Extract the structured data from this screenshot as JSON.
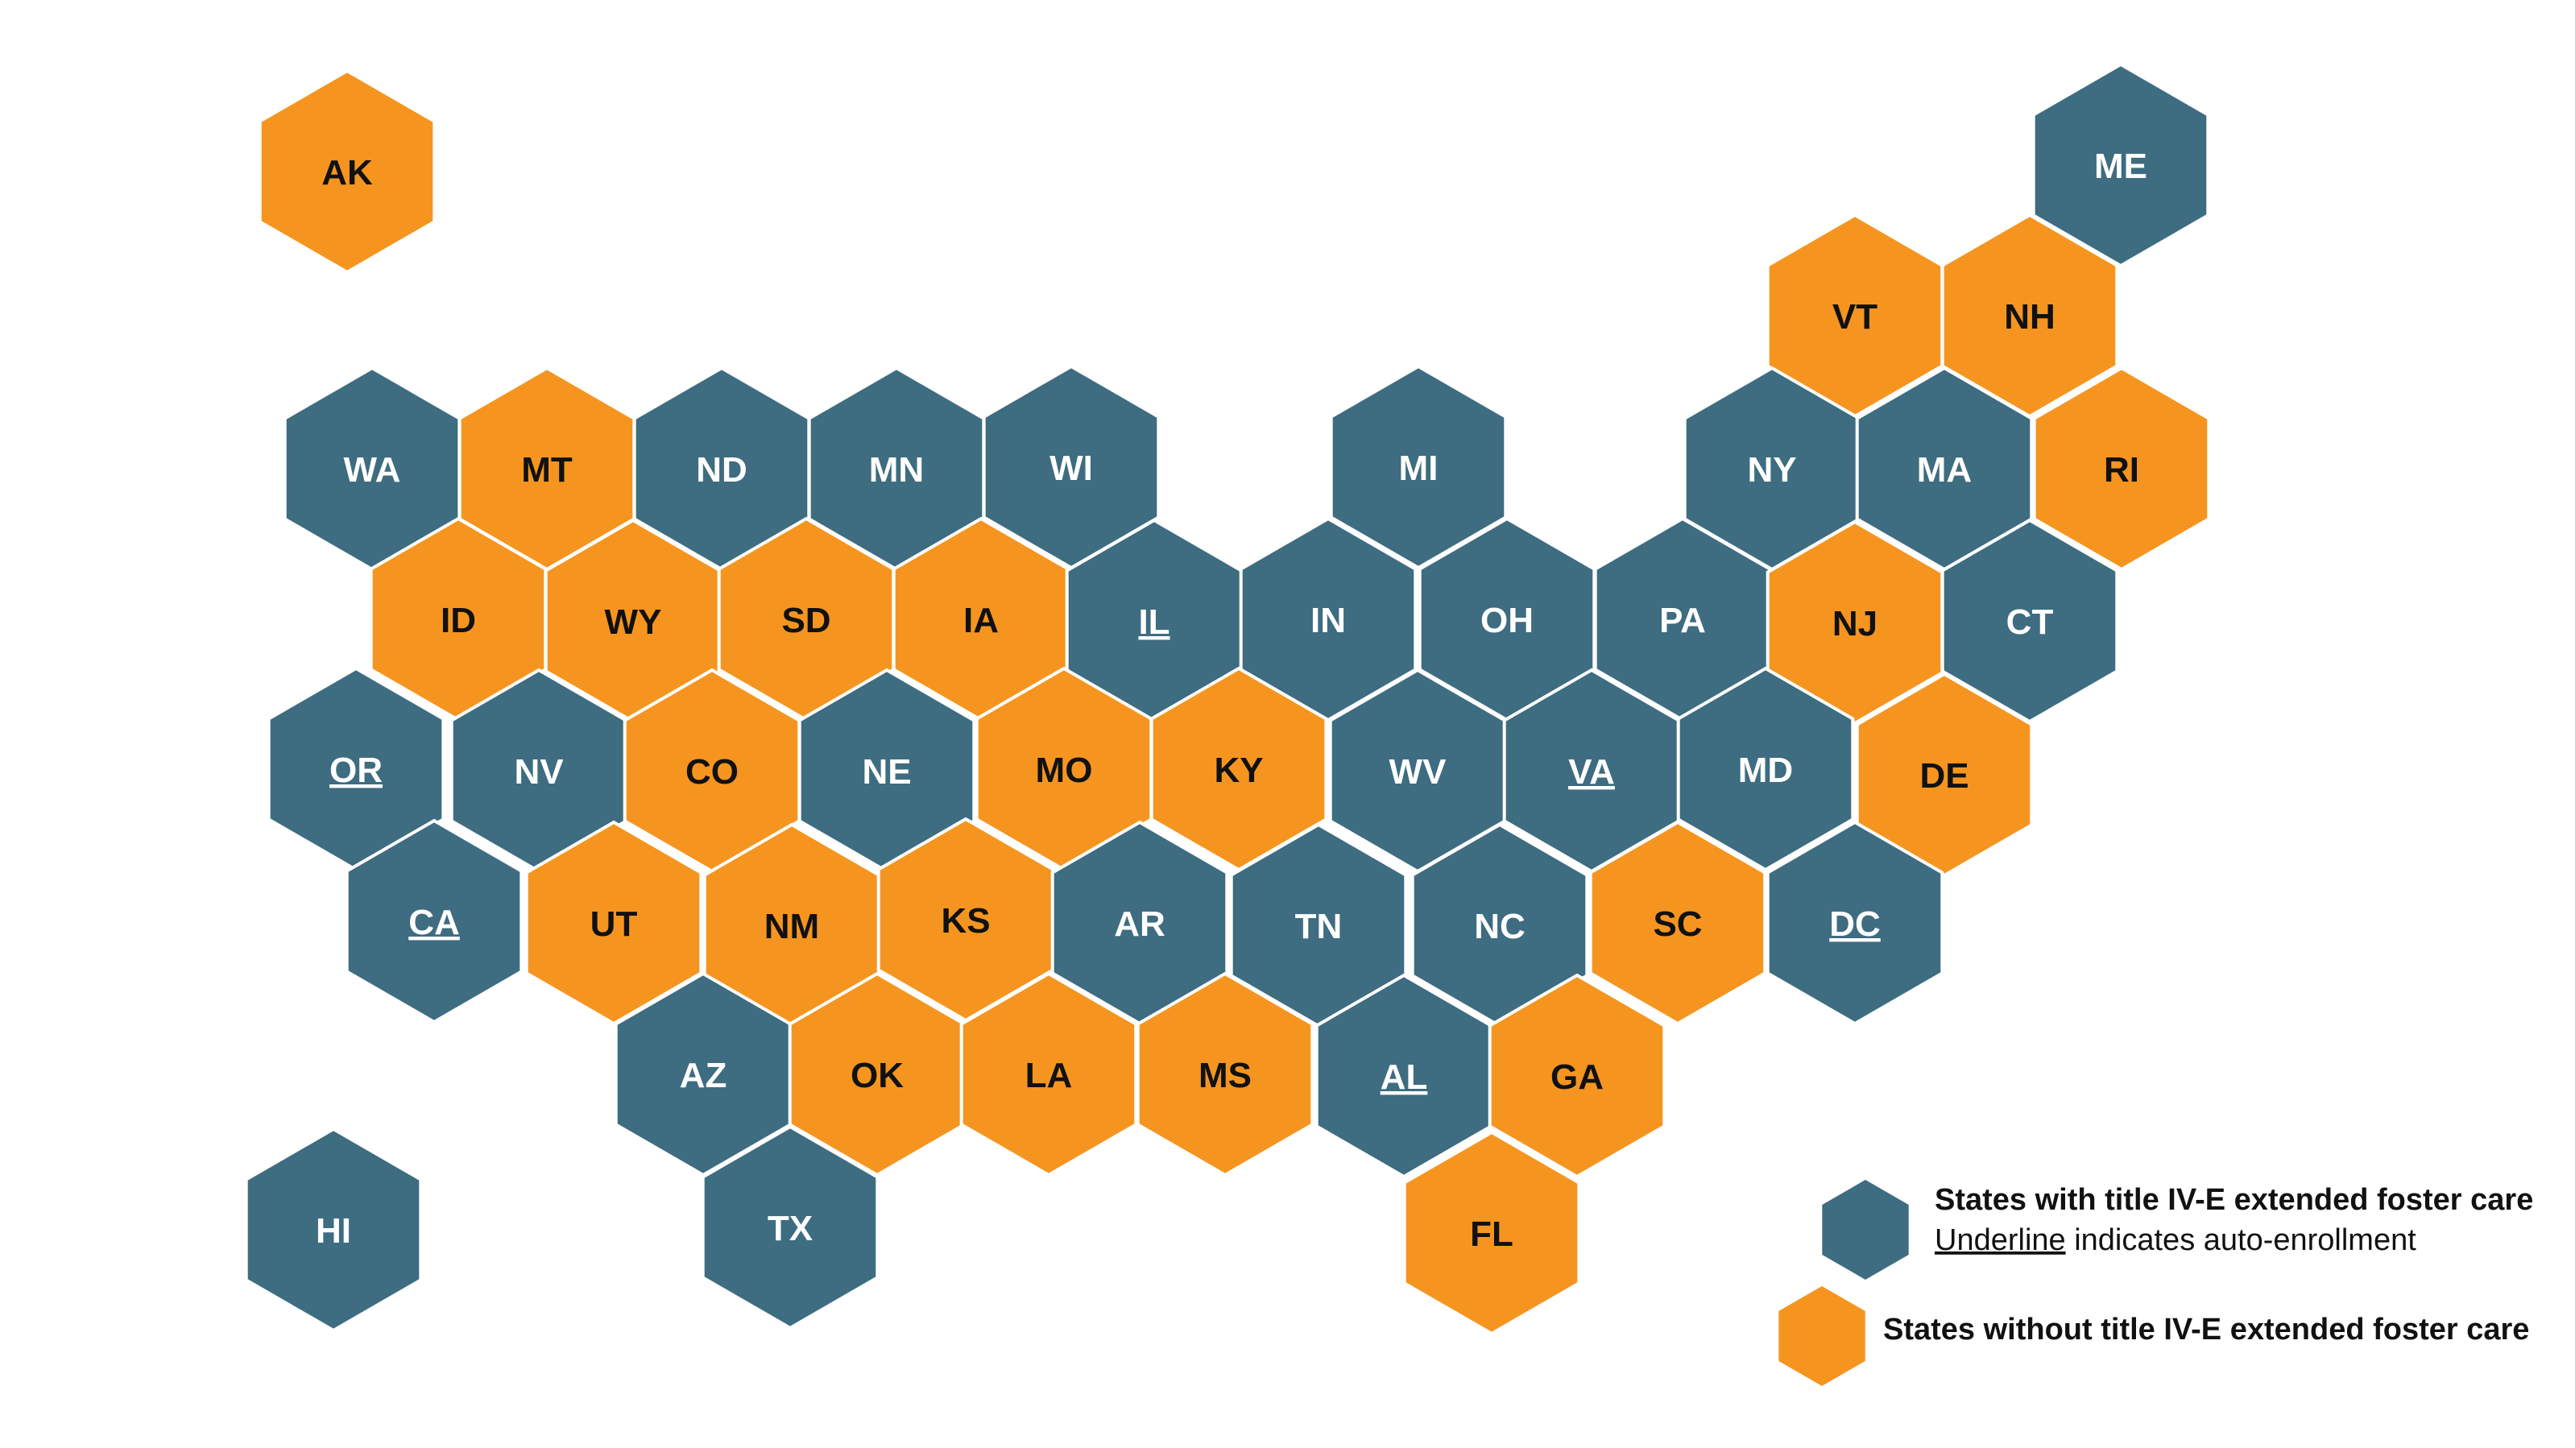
{
  "colors": {
    "with_extended_care": "#3e6c80",
    "without_extended_care": "#f59520",
    "hex_border": "#ffffff"
  },
  "states": [
    {
      "abbr": "AK",
      "status": "without",
      "underline": false
    },
    {
      "abbr": "ME",
      "status": "with",
      "underline": false
    },
    {
      "abbr": "VT",
      "status": "without",
      "underline": false
    },
    {
      "abbr": "NH",
      "status": "without",
      "underline": false
    },
    {
      "abbr": "WA",
      "status": "with",
      "underline": false
    },
    {
      "abbr": "MT",
      "status": "without",
      "underline": false
    },
    {
      "abbr": "ND",
      "status": "with",
      "underline": false
    },
    {
      "abbr": "MN",
      "status": "with",
      "underline": false
    },
    {
      "abbr": "WI",
      "status": "with",
      "underline": false
    },
    {
      "abbr": "MI",
      "status": "with",
      "underline": false
    },
    {
      "abbr": "NY",
      "status": "with",
      "underline": false
    },
    {
      "abbr": "MA",
      "status": "with",
      "underline": false
    },
    {
      "abbr": "RI",
      "status": "without",
      "underline": false
    },
    {
      "abbr": "ID",
      "status": "without",
      "underline": false
    },
    {
      "abbr": "WY",
      "status": "without",
      "underline": false
    },
    {
      "abbr": "SD",
      "status": "without",
      "underline": false
    },
    {
      "abbr": "IA",
      "status": "without",
      "underline": false
    },
    {
      "abbr": "IL",
      "status": "with",
      "underline": true
    },
    {
      "abbr": "IN",
      "status": "with",
      "underline": false
    },
    {
      "abbr": "OH",
      "status": "with",
      "underline": false
    },
    {
      "abbr": "PA",
      "status": "with",
      "underline": false
    },
    {
      "abbr": "NJ",
      "status": "without",
      "underline": false
    },
    {
      "abbr": "CT",
      "status": "with",
      "underline": false
    },
    {
      "abbr": "OR",
      "status": "with",
      "underline": true
    },
    {
      "abbr": "NV",
      "status": "with",
      "underline": false
    },
    {
      "abbr": "CO",
      "status": "without",
      "underline": false
    },
    {
      "abbr": "NE",
      "status": "with",
      "underline": false
    },
    {
      "abbr": "MO",
      "status": "without",
      "underline": false
    },
    {
      "abbr": "KY",
      "status": "without",
      "underline": false
    },
    {
      "abbr": "WV",
      "status": "with",
      "underline": false
    },
    {
      "abbr": "VA",
      "status": "with",
      "underline": true
    },
    {
      "abbr": "MD",
      "status": "with",
      "underline": false
    },
    {
      "abbr": "DE",
      "status": "without",
      "underline": false
    },
    {
      "abbr": "CA",
      "status": "with",
      "underline": true
    },
    {
      "abbr": "UT",
      "status": "without",
      "underline": false
    },
    {
      "abbr": "NM",
      "status": "without",
      "underline": false
    },
    {
      "abbr": "KS",
      "status": "without",
      "underline": false
    },
    {
      "abbr": "AR",
      "status": "with",
      "underline": false
    },
    {
      "abbr": "TN",
      "status": "with",
      "underline": false
    },
    {
      "abbr": "NC",
      "status": "with",
      "underline": false
    },
    {
      "abbr": "SC",
      "status": "without",
      "underline": false
    },
    {
      "abbr": "DC",
      "status": "with",
      "underline": true
    },
    {
      "abbr": "AZ",
      "status": "with",
      "underline": false
    },
    {
      "abbr": "OK",
      "status": "without",
      "underline": false
    },
    {
      "abbr": "LA",
      "status": "without",
      "underline": false
    },
    {
      "abbr": "MS",
      "status": "without",
      "underline": false
    },
    {
      "abbr": "AL",
      "status": "with",
      "underline": true
    },
    {
      "abbr": "GA",
      "status": "without",
      "underline": false
    },
    {
      "abbr": "HI",
      "status": "with",
      "underline": false
    },
    {
      "abbr": "TX",
      "status": "with",
      "underline": false
    },
    {
      "abbr": "FL",
      "status": "without",
      "underline": false
    }
  ],
  "legend": {
    "with_label": "States with title IV-E extended foster care",
    "underline_word": "Underline",
    "underline_rest": " indicates auto-enrollment",
    "without_label": "States without title IV-E extended foster care"
  }
}
